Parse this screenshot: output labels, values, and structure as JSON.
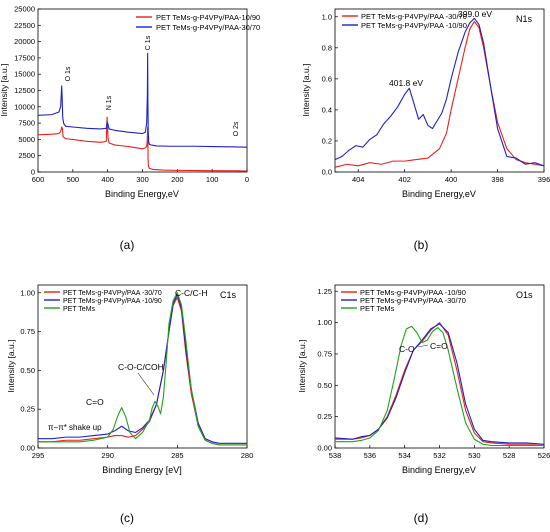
{
  "figure": {
    "panel_labels": [
      "(a)",
      "(b)",
      "(c)",
      "(d)"
    ]
  },
  "chart_data": [
    {
      "id": "a",
      "type": "line",
      "xlabel": "Binding Energy,eV",
      "ylabel": "Intensity [a.u.]",
      "xlim": [
        600,
        0
      ],
      "ylim": [
        0,
        25000
      ],
      "x_ticks": [
        600,
        500,
        400,
        300,
        200,
        100,
        0
      ],
      "y_ticks": [
        0,
        2500,
        5000,
        7500,
        10000,
        12500,
        15000,
        17500,
        20000,
        22500,
        25000
      ],
      "legend_position": "top-right",
      "panel_title": "",
      "grid": false,
      "series": [
        {
          "name": "PET TeMs-g-P4VPy/PAA-10/90",
          "color": "#e8201c",
          "x": [
            600,
            560,
            540,
            535,
            532,
            530,
            528,
            520,
            500,
            460,
            420,
            404,
            401.5,
            399,
            396,
            380,
            340,
            300,
            292,
            288,
            286.5,
            285,
            284,
            283,
            280,
            270,
            240,
            200,
            100,
            30,
            0
          ],
          "y": [
            5700,
            5800,
            5900,
            6200,
            6900,
            6700,
            5400,
            5100,
            5000,
            4700,
            4550,
            4700,
            8400,
            5200,
            4450,
            4150,
            3900,
            3550,
            3700,
            3900,
            4800,
            6900,
            1900,
            900,
            550,
            400,
            300,
            250,
            200,
            180,
            150
          ]
        },
        {
          "name": "PET TeMs-g-P4VPy/PAA-30/70",
          "color": "#1d22c8",
          "x": [
            600,
            560,
            540,
            535,
            532,
            531,
            529,
            526,
            520,
            500,
            460,
            420,
            404,
            401.5,
            399,
            396,
            380,
            340,
            300,
            292,
            288,
            286,
            285.2,
            284.5,
            283.5,
            282,
            280,
            260,
            220,
            150,
            100,
            30,
            0
          ],
          "y": [
            8700,
            8800,
            9200,
            10000,
            13200,
            12000,
            8300,
            7400,
            7000,
            6900,
            6700,
            6600,
            6700,
            7700,
            7300,
            6600,
            6400,
            6100,
            5900,
            6100,
            7500,
            12000,
            18200,
            11000,
            6000,
            4600,
            4200,
            4000,
            3950,
            3950,
            3900,
            3850,
            3800
          ]
        }
      ],
      "annotations": [
        "O 1s",
        "N 1s",
        "C 1s",
        "O 2s"
      ]
    },
    {
      "id": "b",
      "type": "line",
      "xlabel": "Binding Energy,eV",
      "ylabel": "Intensity [a.u.]",
      "xlim": [
        405,
        396
      ],
      "ylim": [
        0,
        1.05
      ],
      "x_ticks": [
        404,
        402,
        400,
        398,
        396
      ],
      "y_ticks": [
        0.0,
        0.2,
        0.4,
        0.6,
        0.8,
        1.0
      ],
      "legend_position": "top-left",
      "panel_title": "N1s",
      "grid": false,
      "series": [
        {
          "name": "PET TeMs-g-P4VPy/PAA -30/70",
          "color": "#e8201c",
          "x": [
            405,
            404.5,
            404,
            403.5,
            403,
            402.5,
            402,
            401.5,
            401,
            400.5,
            400.2,
            400,
            399.7,
            399.4,
            399.2,
            399,
            398.8,
            398.6,
            398.3,
            398,
            397.6,
            397.2,
            396.8,
            396.4,
            396
          ],
          "y": [
            0.03,
            0.05,
            0.04,
            0.06,
            0.05,
            0.07,
            0.07,
            0.08,
            0.09,
            0.15,
            0.25,
            0.4,
            0.6,
            0.8,
            0.92,
            0.97,
            0.93,
            0.8,
            0.55,
            0.32,
            0.15,
            0.08,
            0.06,
            0.05,
            0.04
          ]
        },
        {
          "name": "PET TeMs-g-P4VPy/PAA -10/90",
          "color": "#1d22c8",
          "x": [
            405,
            404.7,
            404.4,
            404.1,
            403.8,
            403.5,
            403.2,
            402.9,
            402.6,
            402.3,
            402,
            401.8,
            401.6,
            401.4,
            401.2,
            401,
            400.8,
            400.6,
            400.4,
            400.2,
            400,
            399.7,
            399.4,
            399.2,
            399,
            398.8,
            398.6,
            398.3,
            398,
            397.6,
            397.2,
            396.8,
            396.4,
            396
          ],
          "y": [
            0.08,
            0.1,
            0.14,
            0.17,
            0.16,
            0.21,
            0.24,
            0.31,
            0.36,
            0.42,
            0.5,
            0.54,
            0.44,
            0.34,
            0.37,
            0.3,
            0.28,
            0.33,
            0.38,
            0.47,
            0.6,
            0.77,
            0.9,
            0.96,
            0.99,
            0.95,
            0.83,
            0.55,
            0.28,
            0.1,
            0.09,
            0.05,
            0.06,
            0.04
          ]
        }
      ],
      "annotations": [
        "399.0 eV",
        "401.8 eV"
      ]
    },
    {
      "id": "c",
      "type": "line",
      "xlabel": "Binding Energy [eV]",
      "ylabel": "Intensity [a.u.]",
      "xlim": [
        295,
        280
      ],
      "ylim": [
        0,
        1.05
      ],
      "x_ticks": [
        295,
        290,
        285,
        280
      ],
      "y_ticks": [
        0.0,
        0.25,
        0.5,
        0.75,
        1.0
      ],
      "legend_position": "top-left",
      "panel_title": "C1s",
      "grid": false,
      "series": [
        {
          "name": "PET TeMs-g-P4VPy/PAA -30/70",
          "color": "#e8201c",
          "x": [
            295,
            294,
            293,
            292,
            291,
            290,
            289.5,
            289,
            288.5,
            288,
            287.5,
            287,
            286.5,
            286,
            285.6,
            285.3,
            285,
            284.7,
            284.4,
            284,
            283.5,
            283,
            282.5,
            282,
            281,
            280
          ],
          "y": [
            0.04,
            0.04,
            0.05,
            0.05,
            0.06,
            0.07,
            0.08,
            0.08,
            0.07,
            0.08,
            0.12,
            0.17,
            0.28,
            0.5,
            0.75,
            0.92,
            0.97,
            0.88,
            0.62,
            0.35,
            0.14,
            0.05,
            0.03,
            0.02,
            0.02,
            0.02
          ]
        },
        {
          "name": "PET TeMs-g-P4VPy/PAA -10/90",
          "color": "#1d22c8",
          "x": [
            295,
            294,
            293,
            292,
            291,
            290,
            289.5,
            289,
            288.5,
            288,
            287.5,
            287,
            286.5,
            286,
            285.6,
            285.3,
            285,
            284.7,
            284.4,
            284,
            283.5,
            283,
            282.5,
            282,
            281,
            280
          ],
          "y": [
            0.06,
            0.06,
            0.07,
            0.07,
            0.08,
            0.09,
            0.11,
            0.14,
            0.11,
            0.1,
            0.13,
            0.18,
            0.28,
            0.5,
            0.75,
            0.93,
            0.99,
            0.9,
            0.65,
            0.38,
            0.16,
            0.06,
            0.04,
            0.03,
            0.03,
            0.03
          ]
        },
        {
          "name": "PET TeMs",
          "color": "#22a01c",
          "x": [
            295,
            294,
            293,
            292,
            291,
            290,
            289.6,
            289.3,
            289,
            288.7,
            288.4,
            288,
            287.5,
            287,
            286.8,
            286.6,
            286.4,
            286.2,
            286,
            285.8,
            285.6,
            285.3,
            285,
            284.7,
            284.4,
            284,
            283.5,
            283,
            282.5,
            282,
            281,
            280
          ],
          "y": [
            0.04,
            0.04,
            0.04,
            0.04,
            0.05,
            0.07,
            0.12,
            0.2,
            0.26,
            0.2,
            0.1,
            0.06,
            0.1,
            0.18,
            0.26,
            0.3,
            0.27,
            0.22,
            0.33,
            0.55,
            0.8,
            0.95,
            1.0,
            0.92,
            0.7,
            0.38,
            0.14,
            0.05,
            0.03,
            0.02,
            0.02,
            0.02
          ]
        }
      ],
      "annotations": [
        "C-C/C-H",
        "C-O-C/COH",
        "C=O",
        "π−π* shake up"
      ]
    },
    {
      "id": "d",
      "type": "line",
      "xlabel": "Binding Energy,eV",
      "ylabel": "Intensity [a.u.]",
      "xlim": [
        538,
        526
      ],
      "ylim": [
        0,
        1.3
      ],
      "x_ticks": [
        538,
        536,
        534,
        532,
        530,
        528,
        526
      ],
      "y_ticks": [
        0.0,
        0.25,
        0.5,
        0.75,
        1.0,
        1.25
      ],
      "legend_position": "top-left",
      "panel_title": "O1s",
      "grid": false,
      "series": [
        {
          "name": "PET TeMs-g-P4VPy/PAA -10/90",
          "color": "#e8201c",
          "x": [
            538,
            537,
            536.5,
            536,
            535.5,
            535,
            534.5,
            534,
            533.5,
            533,
            532.5,
            532,
            531.5,
            531,
            530.5,
            530,
            529.5,
            529,
            528,
            527,
            526
          ],
          "y": [
            0.07,
            0.07,
            0.08,
            0.1,
            0.15,
            0.25,
            0.42,
            0.62,
            0.78,
            0.85,
            0.94,
            1.0,
            0.9,
            0.62,
            0.3,
            0.12,
            0.05,
            0.04,
            0.03,
            0.03,
            0.03
          ]
        },
        {
          "name": "PET TeMs-g-P4VPy/PAA -30/70",
          "color": "#1d22c8",
          "x": [
            538,
            537,
            536.5,
            536,
            535.5,
            535,
            534.5,
            534,
            533.5,
            533,
            532.5,
            532,
            531.5,
            531,
            530.5,
            530,
            529.5,
            529,
            528,
            527,
            526
          ],
          "y": [
            0.08,
            0.07,
            0.09,
            0.1,
            0.15,
            0.24,
            0.4,
            0.6,
            0.78,
            0.86,
            0.95,
            0.99,
            0.92,
            0.68,
            0.35,
            0.15,
            0.06,
            0.05,
            0.04,
            0.04,
            0.03
          ]
        },
        {
          "name": "PET TeMs",
          "color": "#22a01c",
          "x": [
            538,
            537,
            536.5,
            536,
            535.5,
            535,
            534.6,
            534.2,
            533.9,
            533.6,
            533.3,
            533,
            532.7,
            532.4,
            532.1,
            531.8,
            531.5,
            531,
            530.5,
            530,
            529.5,
            529,
            528,
            527,
            526
          ],
          "y": [
            0.05,
            0.05,
            0.06,
            0.08,
            0.14,
            0.3,
            0.55,
            0.82,
            0.95,
            0.97,
            0.92,
            0.84,
            0.86,
            0.93,
            0.96,
            0.92,
            0.78,
            0.48,
            0.2,
            0.07,
            0.03,
            0.02,
            0.02,
            0.02,
            0.02
          ]
        }
      ],
      "annotations": [
        "C-O",
        "C=O"
      ]
    }
  ]
}
